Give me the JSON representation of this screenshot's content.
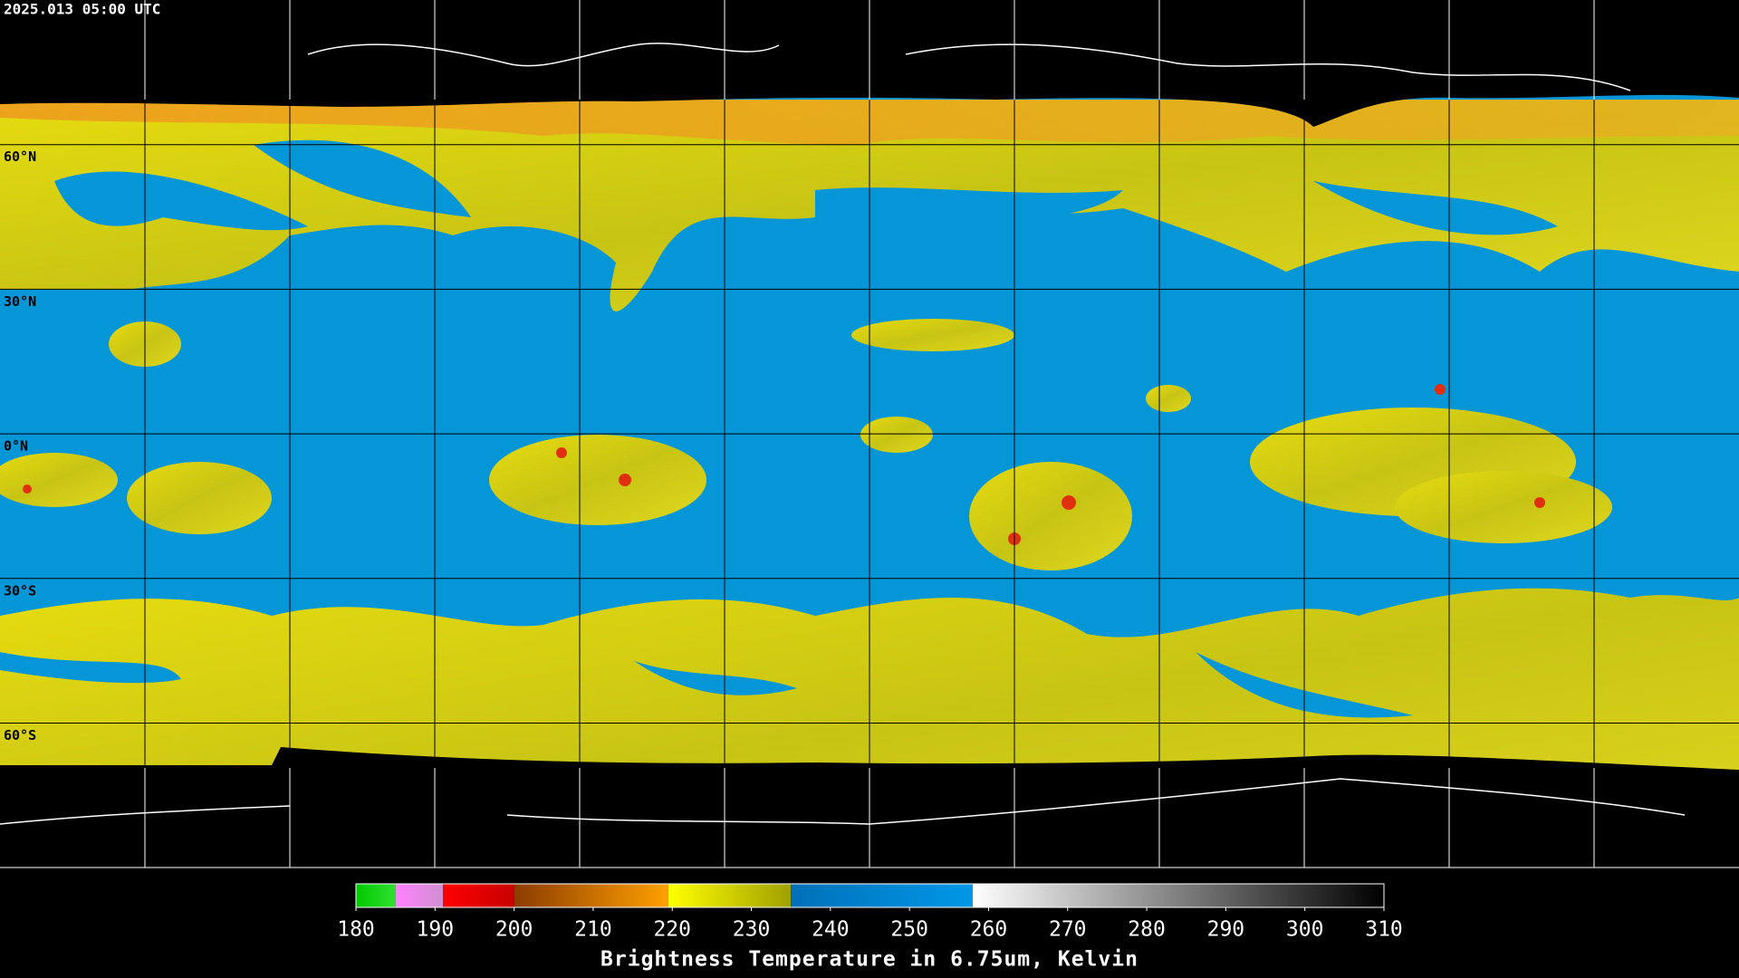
{
  "header": {
    "timestamp": "2025.013 05:00 UTC"
  },
  "map": {
    "latitude_labels": [
      "60°N",
      "30°N",
      "0°N",
      "30°S",
      "60°S"
    ]
  },
  "colorbar": {
    "title": "Brightness Temperature in 6.75um, Kelvin",
    "range": [
      180,
      310
    ],
    "ticks": [
      180,
      190,
      200,
      210,
      220,
      230,
      240,
      250,
      260,
      270,
      280,
      290,
      300,
      310
    ],
    "segments": [
      {
        "from": 180,
        "to": 185,
        "colors": [
          "#00c800",
          "#30e030"
        ]
      },
      {
        "from": 185,
        "to": 191,
        "colors": [
          "#ff80ff",
          "#d090d0"
        ]
      },
      {
        "from": 191,
        "to": 200,
        "colors": [
          "#ff0000",
          "#c80000"
        ]
      },
      {
        "from": 200,
        "to": 219.5,
        "colors": [
          "#8c3c00",
          "#ffa000"
        ]
      },
      {
        "from": 219.5,
        "to": 235,
        "colors": [
          "#ffff00",
          "#a0a000"
        ]
      },
      {
        "from": 235,
        "to": 258,
        "colors": [
          "#0070b8",
          "#0098e8"
        ]
      },
      {
        "from": 258,
        "to": 310,
        "colors": [
          "#ffffff",
          "#000000"
        ]
      }
    ]
  }
}
